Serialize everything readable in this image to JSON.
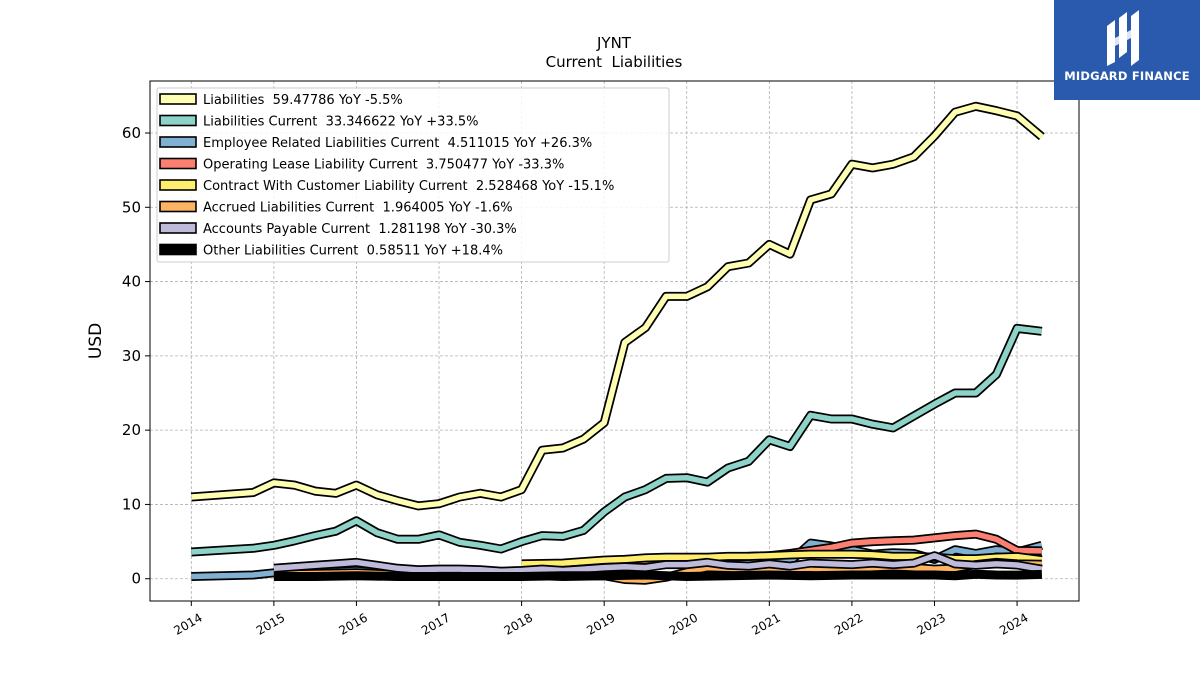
{
  "brand": {
    "name": "MIDGARD FINANCE",
    "logo_icon": "stylized-m-logo-icon",
    "bg_color": "#2a5aad"
  },
  "chart_data": {
    "type": "line",
    "title": "JYNT",
    "subtitle": "Current  Liabilities",
    "ylabel": "USD",
    "xlabel": "",
    "xlim": [
      2013.5,
      2024.75
    ],
    "ylim": [
      -3,
      67
    ],
    "yticks": [
      0,
      10,
      20,
      30,
      40,
      50,
      60
    ],
    "xticks": [
      "2014",
      "2015",
      "2016",
      "2017",
      "2018",
      "2019",
      "2020",
      "2021",
      "2022",
      "2023",
      "2024"
    ],
    "grid": true,
    "legend_position": "top-left",
    "series": [
      {
        "name": "Liabilities",
        "legend": "Liabilities  59.47786 YoY -5.5%",
        "color": "#ffffb3",
        "x": [
          2014.0,
          2014.75,
          2015.0,
          2015.25,
          2015.5,
          2015.75,
          2016.0,
          2016.25,
          2016.5,
          2016.75,
          2017.0,
          2017.25,
          2017.5,
          2017.75,
          2018.0,
          2018.25,
          2018.5,
          2018.75,
          2019.0,
          2019.25,
          2019.5,
          2019.75,
          2020.0,
          2020.25,
          2020.5,
          2020.75,
          2021.0,
          2021.25,
          2021.5,
          2021.75,
          2022.0,
          2022.25,
          2022.5,
          2022.75,
          2023.0,
          2023.25,
          2023.5,
          2023.75,
          2024.0,
          2024.3
        ],
        "y": [
          11.0,
          11.6,
          12.9,
          12.6,
          11.8,
          11.5,
          12.6,
          11.3,
          10.5,
          9.8,
          10.1,
          11.0,
          11.5,
          11.0,
          12.0,
          17.3,
          17.6,
          18.8,
          21.0,
          31.8,
          33.8,
          38.0,
          38.0,
          39.3,
          42.0,
          42.5,
          45.0,
          43.7,
          51.0,
          51.8,
          55.8,
          55.3,
          55.8,
          56.8,
          59.6,
          62.8,
          63.6,
          63.0,
          62.3,
          59.5
        ]
      },
      {
        "name": "Liabilities Current",
        "legend": "Liabilities Current  33.346622 YoY +33.5%",
        "color": "#8dd3c7",
        "x": [
          2014.0,
          2014.75,
          2015.0,
          2015.25,
          2015.5,
          2015.75,
          2016.0,
          2016.25,
          2016.5,
          2016.75,
          2017.0,
          2017.25,
          2017.5,
          2017.75,
          2018.0,
          2018.25,
          2018.5,
          2018.75,
          2019.0,
          2019.25,
          2019.5,
          2019.75,
          2020.0,
          2020.25,
          2020.5,
          2020.75,
          2021.0,
          2021.25,
          2021.5,
          2021.75,
          2022.0,
          2022.25,
          2022.5,
          2022.75,
          2023.0,
          2023.25,
          2023.5,
          2023.75,
          2024.0,
          2024.3
        ],
        "y": [
          3.6,
          4.1,
          4.5,
          5.1,
          5.8,
          6.4,
          7.8,
          6.2,
          5.3,
          5.3,
          5.9,
          4.9,
          4.5,
          4.0,
          5.0,
          5.8,
          5.7,
          6.5,
          9.0,
          11.0,
          12.0,
          13.5,
          13.6,
          13.0,
          14.9,
          15.8,
          18.7,
          17.8,
          22.0,
          21.5,
          21.5,
          20.8,
          20.3,
          21.9,
          23.5,
          25.0,
          25.0,
          27.5,
          33.7,
          33.3
        ]
      },
      {
        "name": "Employee Related Liabilities Current",
        "legend": "Employee Related Liabilities Current  4.511015 YoY +26.3%",
        "color": "#80b1d3",
        "x": [
          2014.0,
          2014.75,
          2015.0,
          2015.25,
          2015.5,
          2015.75,
          2016.0,
          2016.25,
          2016.5,
          2016.75,
          2017.0,
          2017.25,
          2017.5,
          2017.75,
          2018.0,
          2018.25,
          2018.5,
          2018.75,
          2019.0,
          2019.25,
          2019.5,
          2019.75,
          2020.0,
          2020.25,
          2020.5,
          2020.75,
          2021.0,
          2021.25,
          2021.5,
          2021.75,
          2022.0,
          2022.25,
          2022.5,
          2022.75,
          2023.0,
          2023.25,
          2023.5,
          2023.75,
          2024.0,
          2024.3
        ],
        "y": [
          0.3,
          0.5,
          0.8,
          0.7,
          0.9,
          1.0,
          1.1,
          0.9,
          0.8,
          0.7,
          0.9,
          0.8,
          0.8,
          0.7,
          1.0,
          1.1,
          1.2,
          1.3,
          1.5,
          1.8,
          2.0,
          2.2,
          2.6,
          2.5,
          2.9,
          2.5,
          3.0,
          2.3,
          4.8,
          4.4,
          3.9,
          3.3,
          3.5,
          3.4,
          2.6,
          3.9,
          3.4,
          3.9,
          3.6,
          4.5
        ]
      },
      {
        "name": "Operating Lease Liability Current",
        "legend": "Operating Lease Liability Current  3.750477 YoY -33.3%",
        "color": "#fb8072",
        "x": [
          2019.0,
          2019.25,
          2019.5,
          2019.75,
          2020.0,
          2020.25,
          2020.5,
          2020.75,
          2021.0,
          2021.25,
          2021.5,
          2021.75,
          2022.0,
          2022.25,
          2022.5,
          2022.75,
          2023.0,
          2023.25,
          2023.5,
          2023.75,
          2024.0,
          2024.3
        ],
        "y": [
          1.9,
          2.0,
          2.2,
          2.4,
          2.6,
          2.7,
          2.9,
          3.0,
          3.1,
          3.4,
          3.8,
          4.2,
          4.8,
          5.0,
          5.1,
          5.2,
          5.5,
          5.8,
          6.0,
          5.3,
          3.8,
          3.75
        ]
      },
      {
        "name": "Contract With Customer Liability Current",
        "legend": "Contract With Customer Liability Current  2.528468 YoY -15.1%",
        "color": "#ffed6f",
        "x": [
          2018.0,
          2018.5,
          2018.75,
          2019.0,
          2019.25,
          2019.5,
          2019.75,
          2020.0,
          2020.25,
          2020.5,
          2020.75,
          2021.0,
          2021.25,
          2021.5,
          2021.75,
          2022.0,
          2022.25,
          2022.5,
          2022.75,
          2023.0,
          2023.25,
          2023.5,
          2023.75,
          2024.0,
          2024.3
        ],
        "y": [
          2.0,
          2.1,
          2.3,
          2.5,
          2.6,
          2.8,
          2.9,
          2.9,
          2.9,
          3.0,
          3.0,
          3.1,
          3.2,
          3.3,
          3.3,
          3.3,
          3.2,
          3.0,
          3.0,
          2.9,
          2.7,
          2.7,
          2.9,
          2.98,
          2.53
        ]
      },
      {
        "name": "Accrued Liabilities Current",
        "legend": "Accrued Liabilities Current  1.964005 YoY -1.6%",
        "color": "#fdb462",
        "x": [
          2015.0,
          2015.5,
          2016.0,
          2016.5,
          2017.0,
          2017.5,
          2018.0,
          2018.5,
          2019.0,
          2019.25,
          2019.5,
          2019.75,
          2020.0,
          2020.25,
          2020.5,
          2020.75,
          2021.0,
          2021.25,
          2021.5,
          2021.75,
          2022.0,
          2022.25,
          2022.5,
          2022.75,
          2023.0,
          2023.25,
          2023.5,
          2023.75,
          2024.0,
          2024.3
        ],
        "y": [
          0.6,
          0.7,
          0.8,
          0.6,
          0.6,
          0.5,
          0.5,
          0.3,
          0.4,
          -0.1,
          -0.2,
          0.2,
          0.9,
          1.5,
          1.4,
          1.2,
          1.3,
          1.4,
          1.4,
          1.2,
          1.3,
          1.5,
          1.6,
          1.5,
          1.3,
          1.4,
          1.9,
          2.2,
          2.0,
          1.96
        ]
      },
      {
        "name": "Accounts Payable Current",
        "legend": "Accounts Payable Current  1.281198 YoY -30.3%",
        "color": "#bebada",
        "x": [
          2015.0,
          2015.25,
          2015.5,
          2015.75,
          2016.0,
          2016.25,
          2016.5,
          2016.75,
          2017.0,
          2017.25,
          2017.5,
          2017.75,
          2018.0,
          2018.25,
          2018.5,
          2018.75,
          2019.0,
          2019.25,
          2019.5,
          2019.75,
          2020.0,
          2020.25,
          2020.5,
          2020.75,
          2021.0,
          2021.25,
          2021.5,
          2021.75,
          2022.0,
          2022.25,
          2022.5,
          2022.75,
          2023.0,
          2023.25,
          2023.5,
          2023.75,
          2024.0,
          2024.3
        ],
        "y": [
          1.4,
          1.6,
          1.8,
          2.0,
          2.2,
          1.8,
          1.4,
          1.2,
          1.3,
          1.3,
          1.2,
          1.0,
          1.1,
          1.3,
          1.1,
          1.3,
          1.5,
          1.6,
          1.5,
          1.9,
          1.9,
          2.2,
          1.8,
          1.7,
          2.0,
          1.7,
          2.1,
          2.0,
          1.9,
          2.1,
          1.9,
          2.1,
          3.1,
          2.0,
          1.8,
          2.0,
          1.84,
          1.28
        ]
      },
      {
        "name": "Other Liabilities Current",
        "legend": "Other Liabilities Current  0.58511 YoY +18.4%",
        "color": "#000000",
        "x": [
          2015.0,
          2015.5,
          2016.0,
          2016.5,
          2017.0,
          2017.5,
          2018.0,
          2018.5,
          2019.0,
          2019.5,
          2020.0,
          2020.5,
          2021.0,
          2021.5,
          2022.0,
          2022.5,
          2023.0,
          2023.25,
          2023.5,
          2023.75,
          2024.0,
          2024.3
        ],
        "y": [
          0.3,
          0.3,
          0.4,
          0.3,
          0.3,
          0.3,
          0.3,
          0.4,
          0.4,
          0.5,
          0.3,
          0.4,
          0.5,
          0.4,
          0.5,
          0.5,
          0.5,
          0.4,
          0.6,
          0.5,
          0.49,
          0.585
        ]
      }
    ]
  }
}
